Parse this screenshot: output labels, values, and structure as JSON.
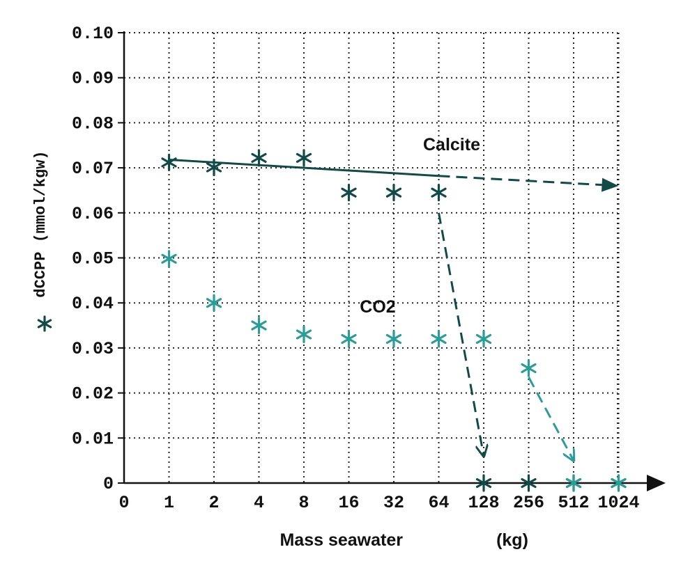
{
  "chart_data": {
    "type": "scatter",
    "x_scale": "log2",
    "x_tick_labels": [
      "0",
      "1",
      "2",
      "4",
      "8",
      "16",
      "32",
      "64",
      "128",
      "256",
      "512",
      "1024"
    ],
    "y_tick_labels": [
      "0",
      "0.01",
      "0.02",
      "0.03",
      "0.04",
      "0.05",
      "0.06",
      "0.07",
      "0.08",
      "0.09",
      "0.10"
    ],
    "xlabel": "Mass seawater",
    "xlabel_unit": "(kg)",
    "ylabel": "dCCPP (mmol/kgw)",
    "ylabel_marker": "*",
    "ylim": [
      0,
      0.1
    ],
    "grid": true,
    "series": [
      {
        "name": "Calcite",
        "color": "#124a48",
        "marker": "asterisk",
        "x": [
          1,
          2,
          4,
          8,
          16,
          32,
          64,
          128,
          256,
          512,
          1024
        ],
        "y": [
          0.0712,
          0.0701,
          0.0722,
          0.0722,
          0.0645,
          0.0645,
          0.0645,
          0,
          0,
          0,
          0
        ]
      },
      {
        "name": "CO2",
        "color": "#2a9d96",
        "marker": "asterisk",
        "x": [
          1,
          2,
          4,
          8,
          16,
          32,
          64,
          128,
          256,
          512,
          1024
        ],
        "y": [
          0.0498,
          0.04,
          0.035,
          0.033,
          0.032,
          0.032,
          0.032,
          0.032,
          0.0255,
          0,
          0
        ]
      }
    ],
    "annotations": [
      {
        "text": "Calcite",
        "type": "label"
      },
      {
        "text": "CO2",
        "type": "label"
      },
      {
        "type": "trend-line",
        "series": "Calcite",
        "style": "solid",
        "from": [
          1,
          0.0718
        ],
        "to": [
          64,
          0.0682
        ]
      },
      {
        "type": "arrow",
        "series": "Calcite",
        "style": "dashed",
        "from": [
          64,
          0.0682
        ],
        "to": [
          1024,
          0.066
        ]
      },
      {
        "type": "arrow",
        "series": "Calcite",
        "style": "dashed",
        "from": [
          64,
          0.06
        ],
        "to": [
          128,
          0.006
        ]
      },
      {
        "type": "arrow",
        "series": "CO2",
        "style": "dashed",
        "from": [
          256,
          0.0235
        ],
        "to": [
          512,
          0.005
        ]
      }
    ]
  }
}
